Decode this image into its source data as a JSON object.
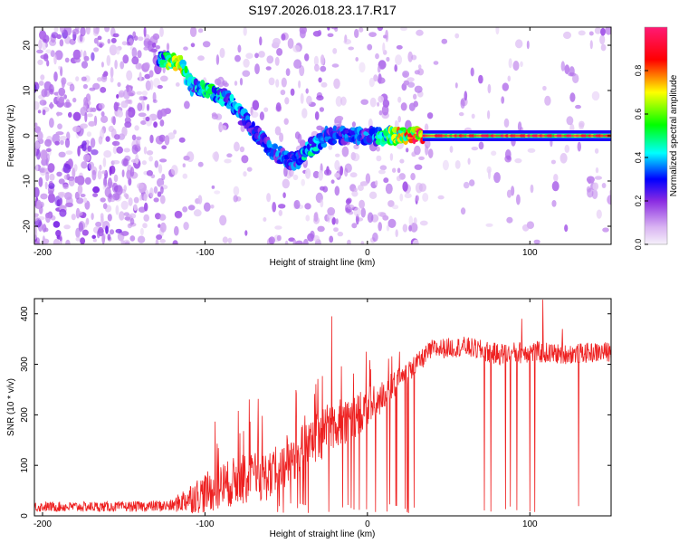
{
  "figure_title": "S197.2026.018.23.17.R17",
  "chart_data": [
    {
      "type": "heatmap",
      "title": "S197.2026.018.23.17.R17",
      "xlabel": "Height of straight line (km)",
      "ylabel": "Frequency (Hz)",
      "xlim": [
        -205,
        150
      ],
      "ylim": [
        -24,
        24
      ],
      "xticks": [
        -200,
        -100,
        0,
        100
      ],
      "yticks": [
        20,
        10,
        0,
        -10,
        -20
      ],
      "colorbar": {
        "label": "Normalized spectral amplitude",
        "range": [
          0,
          1
        ],
        "ticks": [
          0.0,
          0.2,
          0.4,
          0.6,
          0.8
        ],
        "colormap": [
          "#f5f0fa",
          "#d9b3f2",
          "#8a2be2",
          "#0000ff",
          "#00ffff",
          "#00ff00",
          "#ffff00",
          "#ff0000",
          "#ff1a75"
        ]
      },
      "ridge": {
        "description_points": [
          {
            "height_km": -128,
            "freq_hz": 17,
            "amp": 0.4
          },
          {
            "height_km": -115,
            "freq_hz": 16,
            "amp": 0.65
          },
          {
            "height_km": -108,
            "freq_hz": 11,
            "amp": 0.35
          },
          {
            "height_km": -97,
            "freq_hz": 10,
            "amp": 0.45
          },
          {
            "height_km": -85,
            "freq_hz": 8,
            "amp": 0.35
          },
          {
            "height_km": -72,
            "freq_hz": 2,
            "amp": 0.3
          },
          {
            "height_km": -60,
            "freq_hz": -3,
            "amp": 0.3
          },
          {
            "height_km": -45,
            "freq_hz": -6,
            "amp": 0.3
          },
          {
            "height_km": -36,
            "freq_hz": -3,
            "amp": 0.4
          },
          {
            "height_km": -25,
            "freq_hz": 0,
            "amp": 0.3
          },
          {
            "height_km": 0,
            "freq_hz": 0,
            "amp": 0.3
          },
          {
            "height_km": 35,
            "freq_hz": 0,
            "amp": 0.9
          },
          {
            "height_km": 150,
            "freq_hz": 0,
            "amp": 0.9
          }
        ]
      }
    },
    {
      "type": "line",
      "xlabel": "Height of straight line (km)",
      "ylabel": "SNR (10 * v/v)",
      "xlim": [
        -205,
        150
      ],
      "ylim": [
        0,
        430
      ],
      "xticks": [
        -200,
        -100,
        0,
        100
      ],
      "yticks": [
        0,
        100,
        200,
        300,
        400
      ],
      "series": [
        {
          "name": "SNR",
          "color": "#ee2020",
          "envelope_x": [
            -205,
            -150,
            -120,
            -110,
            -100,
            -80,
            -60,
            -40,
            -20,
            0,
            20,
            30,
            40,
            60,
            80,
            100,
            120,
            150
          ],
          "envelope_y": [
            18,
            18,
            20,
            35,
            45,
            70,
            80,
            130,
            180,
            210,
            270,
            300,
            330,
            335,
            320,
            325,
            320,
            325
          ],
          "noise_amplitude": [
            10,
            10,
            12,
            30,
            40,
            50,
            50,
            50,
            50,
            40,
            25,
            20,
            20,
            20,
            22,
            22,
            20,
            20
          ],
          "dropouts_x": [
            -22,
            -10,
            -5,
            5,
            12,
            18,
            25,
            72,
            76,
            85,
            88,
            92,
            95,
            100,
            103,
            120,
            130
          ],
          "spikes": [
            {
              "x": -22,
              "y": 395
            },
            {
              "x": 95,
              "y": 390
            },
            {
              "x": 108,
              "y": 428
            },
            {
              "x": 120,
              "y": 370
            }
          ]
        }
      ]
    }
  ]
}
